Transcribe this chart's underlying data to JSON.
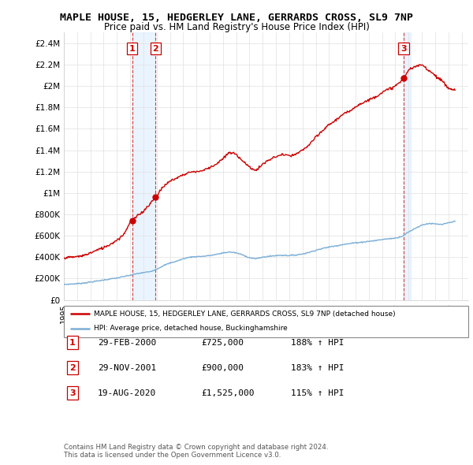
{
  "title": "MAPLE HOUSE, 15, HEDGERLEY LANE, GERRARDS CROSS, SL9 7NP",
  "subtitle": "Price paid vs. HM Land Registry's House Price Index (HPI)",
  "ylabel_ticks": [
    "£0",
    "£200K",
    "£400K",
    "£600K",
    "£800K",
    "£1M",
    "£1.2M",
    "£1.4M",
    "£1.6M",
    "£1.8M",
    "£2M",
    "£2.2M",
    "£2.4M"
  ],
  "ytick_values": [
    0,
    200000,
    400000,
    600000,
    800000,
    1000000,
    1200000,
    1400000,
    1600000,
    1800000,
    2000000,
    2200000,
    2400000
  ],
  "ylim": [
    0,
    2500000
  ],
  "xlim_start": 1995.0,
  "xlim_end": 2025.5,
  "background_color": "#ffffff",
  "grid_color": "#e0e0e0",
  "sale_line_color": "#cc0000",
  "hpi_line_color": "#7aaed6",
  "vertical_line_color": "#cc0000",
  "shade_color": "#ddeeff",
  "transactions": [
    {
      "id": 1,
      "date_str": "29-FEB-2000",
      "year": 2000.16,
      "price": 725000,
      "label": "1"
    },
    {
      "id": 2,
      "date_str": "29-NOV-2001",
      "year": 2001.91,
      "price": 900000,
      "label": "2"
    },
    {
      "id": 3,
      "date_str": "19-AUG-2020",
      "year": 2020.63,
      "price": 1525000,
      "label": "3"
    }
  ],
  "legend_sale_label": "MAPLE HOUSE, 15, HEDGERLEY LANE, GERRARDS CROSS, SL9 7NP (detached house)",
  "legend_hpi_label": "HPI: Average price, detached house, Buckinghamshire",
  "footer_line1": "Contains HM Land Registry data © Crown copyright and database right 2024.",
  "footer_line2": "This data is licensed under the Open Government Licence v3.0.",
  "table_rows": [
    {
      "label": "1",
      "date": "29-FEB-2000",
      "price": "£725,000",
      "pct": "188% ↑ HPI"
    },
    {
      "label": "2",
      "date": "29-NOV-2001",
      "price": "£900,000",
      "pct": "183% ↑ HPI"
    },
    {
      "label": "3",
      "date": "19-AUG-2020",
      "price": "£1,525,000",
      "pct": "115% ↑ HPI"
    }
  ],
  "hpi_years": [
    1995.0,
    1995.5,
    1996.0,
    1996.5,
    1997.0,
    1997.5,
    1998.0,
    1998.5,
    1999.0,
    1999.5,
    2000.0,
    2000.5,
    2001.0,
    2001.5,
    2002.0,
    2002.5,
    2003.0,
    2003.5,
    2004.0,
    2004.5,
    2005.0,
    2005.5,
    2006.0,
    2006.5,
    2007.0,
    2007.5,
    2008.0,
    2008.5,
    2009.0,
    2009.5,
    2010.0,
    2010.5,
    2011.0,
    2011.5,
    2012.0,
    2012.5,
    2013.0,
    2013.5,
    2014.0,
    2014.5,
    2015.0,
    2015.5,
    2016.0,
    2016.5,
    2017.0,
    2017.5,
    2018.0,
    2018.5,
    2019.0,
    2019.5,
    2020.0,
    2020.5,
    2021.0,
    2021.5,
    2022.0,
    2022.5,
    2023.0,
    2023.5,
    2024.0,
    2024.5
  ],
  "hpi_values": [
    145000,
    148000,
    152000,
    158000,
    167000,
    176000,
    186000,
    196000,
    205000,
    218000,
    231000,
    245000,
    255000,
    265000,
    288000,
    320000,
    345000,
    362000,
    385000,
    400000,
    405000,
    408000,
    415000,
    425000,
    440000,
    448000,
    440000,
    420000,
    395000,
    385000,
    400000,
    408000,
    415000,
    418000,
    415000,
    420000,
    430000,
    445000,
    465000,
    480000,
    495000,
    505000,
    518000,
    525000,
    535000,
    540000,
    548000,
    555000,
    565000,
    572000,
    578000,
    595000,
    635000,
    670000,
    700000,
    715000,
    710000,
    705000,
    720000,
    735000
  ],
  "sale_years": [
    1995.0,
    1995.5,
    1996.0,
    1996.5,
    1997.0,
    1997.5,
    1998.0,
    1998.5,
    1999.0,
    1999.5,
    2000.0,
    2000.5,
    2001.0,
    2001.5,
    2002.0,
    2002.5,
    2003.0,
    2003.5,
    2004.0,
    2004.5,
    2005.0,
    2005.5,
    2006.0,
    2006.5,
    2007.0,
    2007.5,
    2008.0,
    2008.5,
    2009.0,
    2009.5,
    2010.0,
    2010.5,
    2011.0,
    2011.5,
    2012.0,
    2012.5,
    2013.0,
    2013.5,
    2014.0,
    2014.5,
    2015.0,
    2015.5,
    2016.0,
    2016.5,
    2017.0,
    2017.5,
    2018.0,
    2018.5,
    2019.0,
    2019.5,
    2020.0,
    2020.5,
    2021.0,
    2021.5,
    2022.0,
    2022.5,
    2023.0,
    2023.5,
    2024.0,
    2024.5
  ],
  "sale_values": [
    395000,
    398000,
    405000,
    415000,
    440000,
    465000,
    490000,
    520000,
    560000,
    610000,
    725000,
    780000,
    830000,
    900000,
    975000,
    1060000,
    1110000,
    1140000,
    1170000,
    1195000,
    1200000,
    1210000,
    1240000,
    1270000,
    1320000,
    1380000,
    1360000,
    1300000,
    1240000,
    1210000,
    1270000,
    1310000,
    1340000,
    1360000,
    1345000,
    1360000,
    1400000,
    1450000,
    1520000,
    1580000,
    1640000,
    1680000,
    1730000,
    1760000,
    1810000,
    1840000,
    1870000,
    1900000,
    1940000,
    1970000,
    2000000,
    2050000,
    2150000,
    2180000,
    2200000,
    2150000,
    2100000,
    2050000,
    1980000,
    1960000
  ]
}
